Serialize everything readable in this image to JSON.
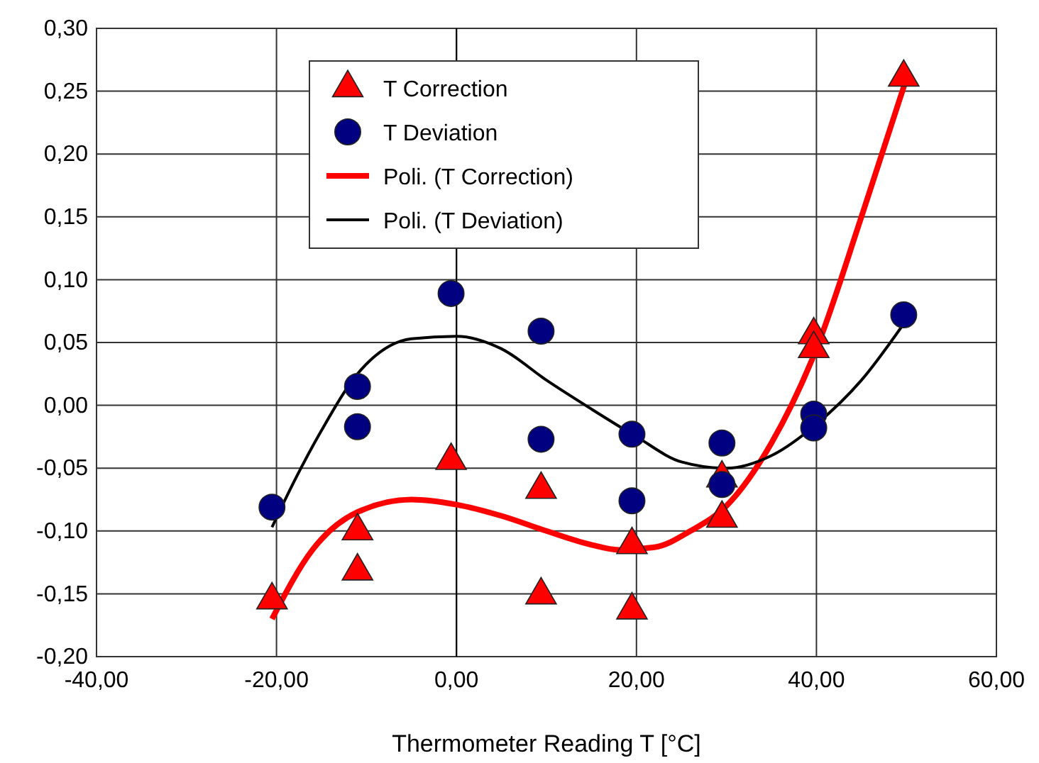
{
  "chart_data": {
    "type": "scatter",
    "xlabel": "Thermometer Reading T [°C]",
    "xlim": [
      -40,
      60
    ],
    "ylim": [
      -0.2,
      0.3
    ],
    "xticks": [
      {
        "value": -40,
        "label": "-40,00"
      },
      {
        "value": -20,
        "label": "-20,00"
      },
      {
        "value": 0,
        "label": "0,00"
      },
      {
        "value": 20,
        "label": "20,00"
      },
      {
        "value": 40,
        "label": "40,00"
      },
      {
        "value": 60,
        "label": "60,00"
      }
    ],
    "yticks": [
      {
        "value": -0.2,
        "label": "-0,20"
      },
      {
        "value": -0.15,
        "label": "-0,15"
      },
      {
        "value": -0.1,
        "label": "-0,10"
      },
      {
        "value": -0.05,
        "label": "-0,05"
      },
      {
        "value": 0,
        "label": "0,00"
      },
      {
        "value": 0.05,
        "label": "0,05"
      },
      {
        "value": 0.1,
        "label": "0,10"
      },
      {
        "value": 0.15,
        "label": "0,15"
      },
      {
        "value": 0.2,
        "label": "0,20"
      },
      {
        "value": 0.25,
        "label": "0,25"
      },
      {
        "value": 0.3,
        "label": "0,30"
      }
    ],
    "grid": true,
    "legend": "top",
    "series": [
      {
        "name": "T Correction",
        "type": "scatter",
        "marker": "triangle",
        "color": "#ff0000",
        "x": [
          -20.5,
          -11,
          -11,
          -0.6,
          9.4,
          9.4,
          19.5,
          19.5,
          29.5,
          29.5,
          39.7,
          39.7,
          49.7
        ],
        "values": [
          -0.155,
          -0.1,
          -0.132,
          -0.044,
          -0.067,
          -0.151,
          -0.111,
          -0.163,
          -0.058,
          -0.09,
          0.056,
          0.045,
          0.261
        ]
      },
      {
        "name": "T Deviation",
        "type": "scatter",
        "marker": "circle",
        "color": "#000080",
        "x": [
          -20.5,
          -11,
          -11,
          -0.6,
          9.4,
          9.4,
          19.5,
          19.5,
          29.5,
          29.5,
          39.7,
          39.7,
          49.7
        ],
        "values": [
          -0.081,
          0.015,
          -0.017,
          0.089,
          0.059,
          -0.027,
          -0.023,
          -0.076,
          -0.03,
          -0.063,
          -0.007,
          -0.018,
          0.072
        ]
      },
      {
        "name": "Poli. (T Correction)",
        "type": "line",
        "color": "#ff0000",
        "x": [
          -20.5,
          -16,
          -11,
          -5,
          0,
          5,
          10,
          15,
          18,
          22,
          26,
          30,
          35,
          40,
          45,
          50
        ],
        "values": [
          -0.17,
          -0.115,
          -0.085,
          -0.075,
          -0.079,
          -0.088,
          -0.1,
          -0.111,
          -0.115,
          -0.113,
          -0.1,
          -0.08,
          -0.03,
          0.045,
          0.15,
          0.26
        ]
      },
      {
        "name": "Poli. (T Deviation)",
        "type": "line",
        "color": "#000000",
        "x": [
          -20.5,
          -18,
          -15,
          -11,
          -5,
          0,
          5,
          10,
          15,
          20,
          25,
          30,
          35,
          40,
          45,
          50
        ],
        "values": [
          -0.097,
          -0.06,
          -0.02,
          0.025,
          0.053,
          0.055,
          0.045,
          0.02,
          -0.003,
          -0.025,
          -0.045,
          -0.05,
          -0.04,
          -0.015,
          0.02,
          0.068
        ]
      }
    ]
  }
}
